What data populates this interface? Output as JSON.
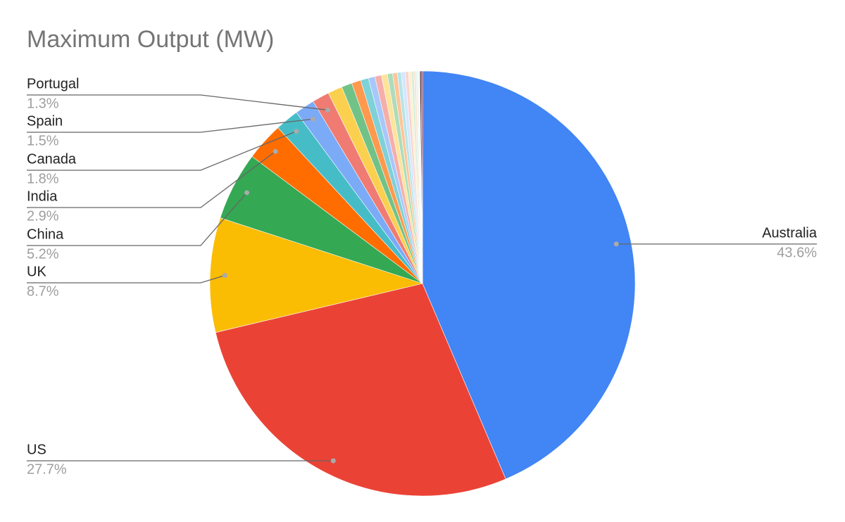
{
  "chart_data": {
    "type": "pie",
    "title": "Maximum Output (MW)",
    "categories": [
      "Australia",
      "US",
      "UK",
      "China",
      "India",
      "Canada",
      "Spain",
      "Portugal",
      null,
      null,
      null,
      null,
      null,
      null,
      null,
      null,
      null,
      null,
      null,
      null,
      null,
      null,
      null,
      null,
      null,
      null,
      null,
      null
    ],
    "values": [
      43.6,
      27.7,
      8.7,
      5.2,
      2.9,
      1.8,
      1.5,
      1.3,
      1.1,
      0.8,
      0.7,
      0.6,
      0.5,
      0.5,
      0.45,
      0.4,
      0.35,
      0.3,
      0.3,
      0.25,
      0.2,
      0.2,
      0.15,
      0.1,
      0.1,
      0.1,
      0.1,
      0.1
    ],
    "value_labels": [
      "43.6%",
      "27.7%",
      "8.7%",
      "5.2%",
      "2.9%",
      "1.8%",
      "1.5%",
      "1.3%",
      null,
      null,
      null,
      null,
      null,
      null,
      null,
      null,
      null,
      null,
      null,
      null,
      null,
      null,
      null,
      null,
      null,
      null,
      null,
      null
    ],
    "colors": [
      "#4285f4",
      "#ea4335",
      "#fbbc04",
      "#34a853",
      "#ff6d01",
      "#46bdc6",
      "#7baaf7",
      "#f07b72",
      "#fcd04f",
      "#71c287",
      "#ff994d",
      "#7ed1d7",
      "#a8c7fa",
      "#f6aea9",
      "#fde49b",
      "#aedcba",
      "#ffc599",
      "#b5e5e8",
      "#d6e6fc",
      "#fad4d1",
      "#fef1cc",
      "#d7eedd",
      "#ffe2cc",
      "#daf2f3",
      "#eeeeee",
      "#f8f8f8",
      "#3c1e1e",
      "#b31412"
    ]
  }
}
